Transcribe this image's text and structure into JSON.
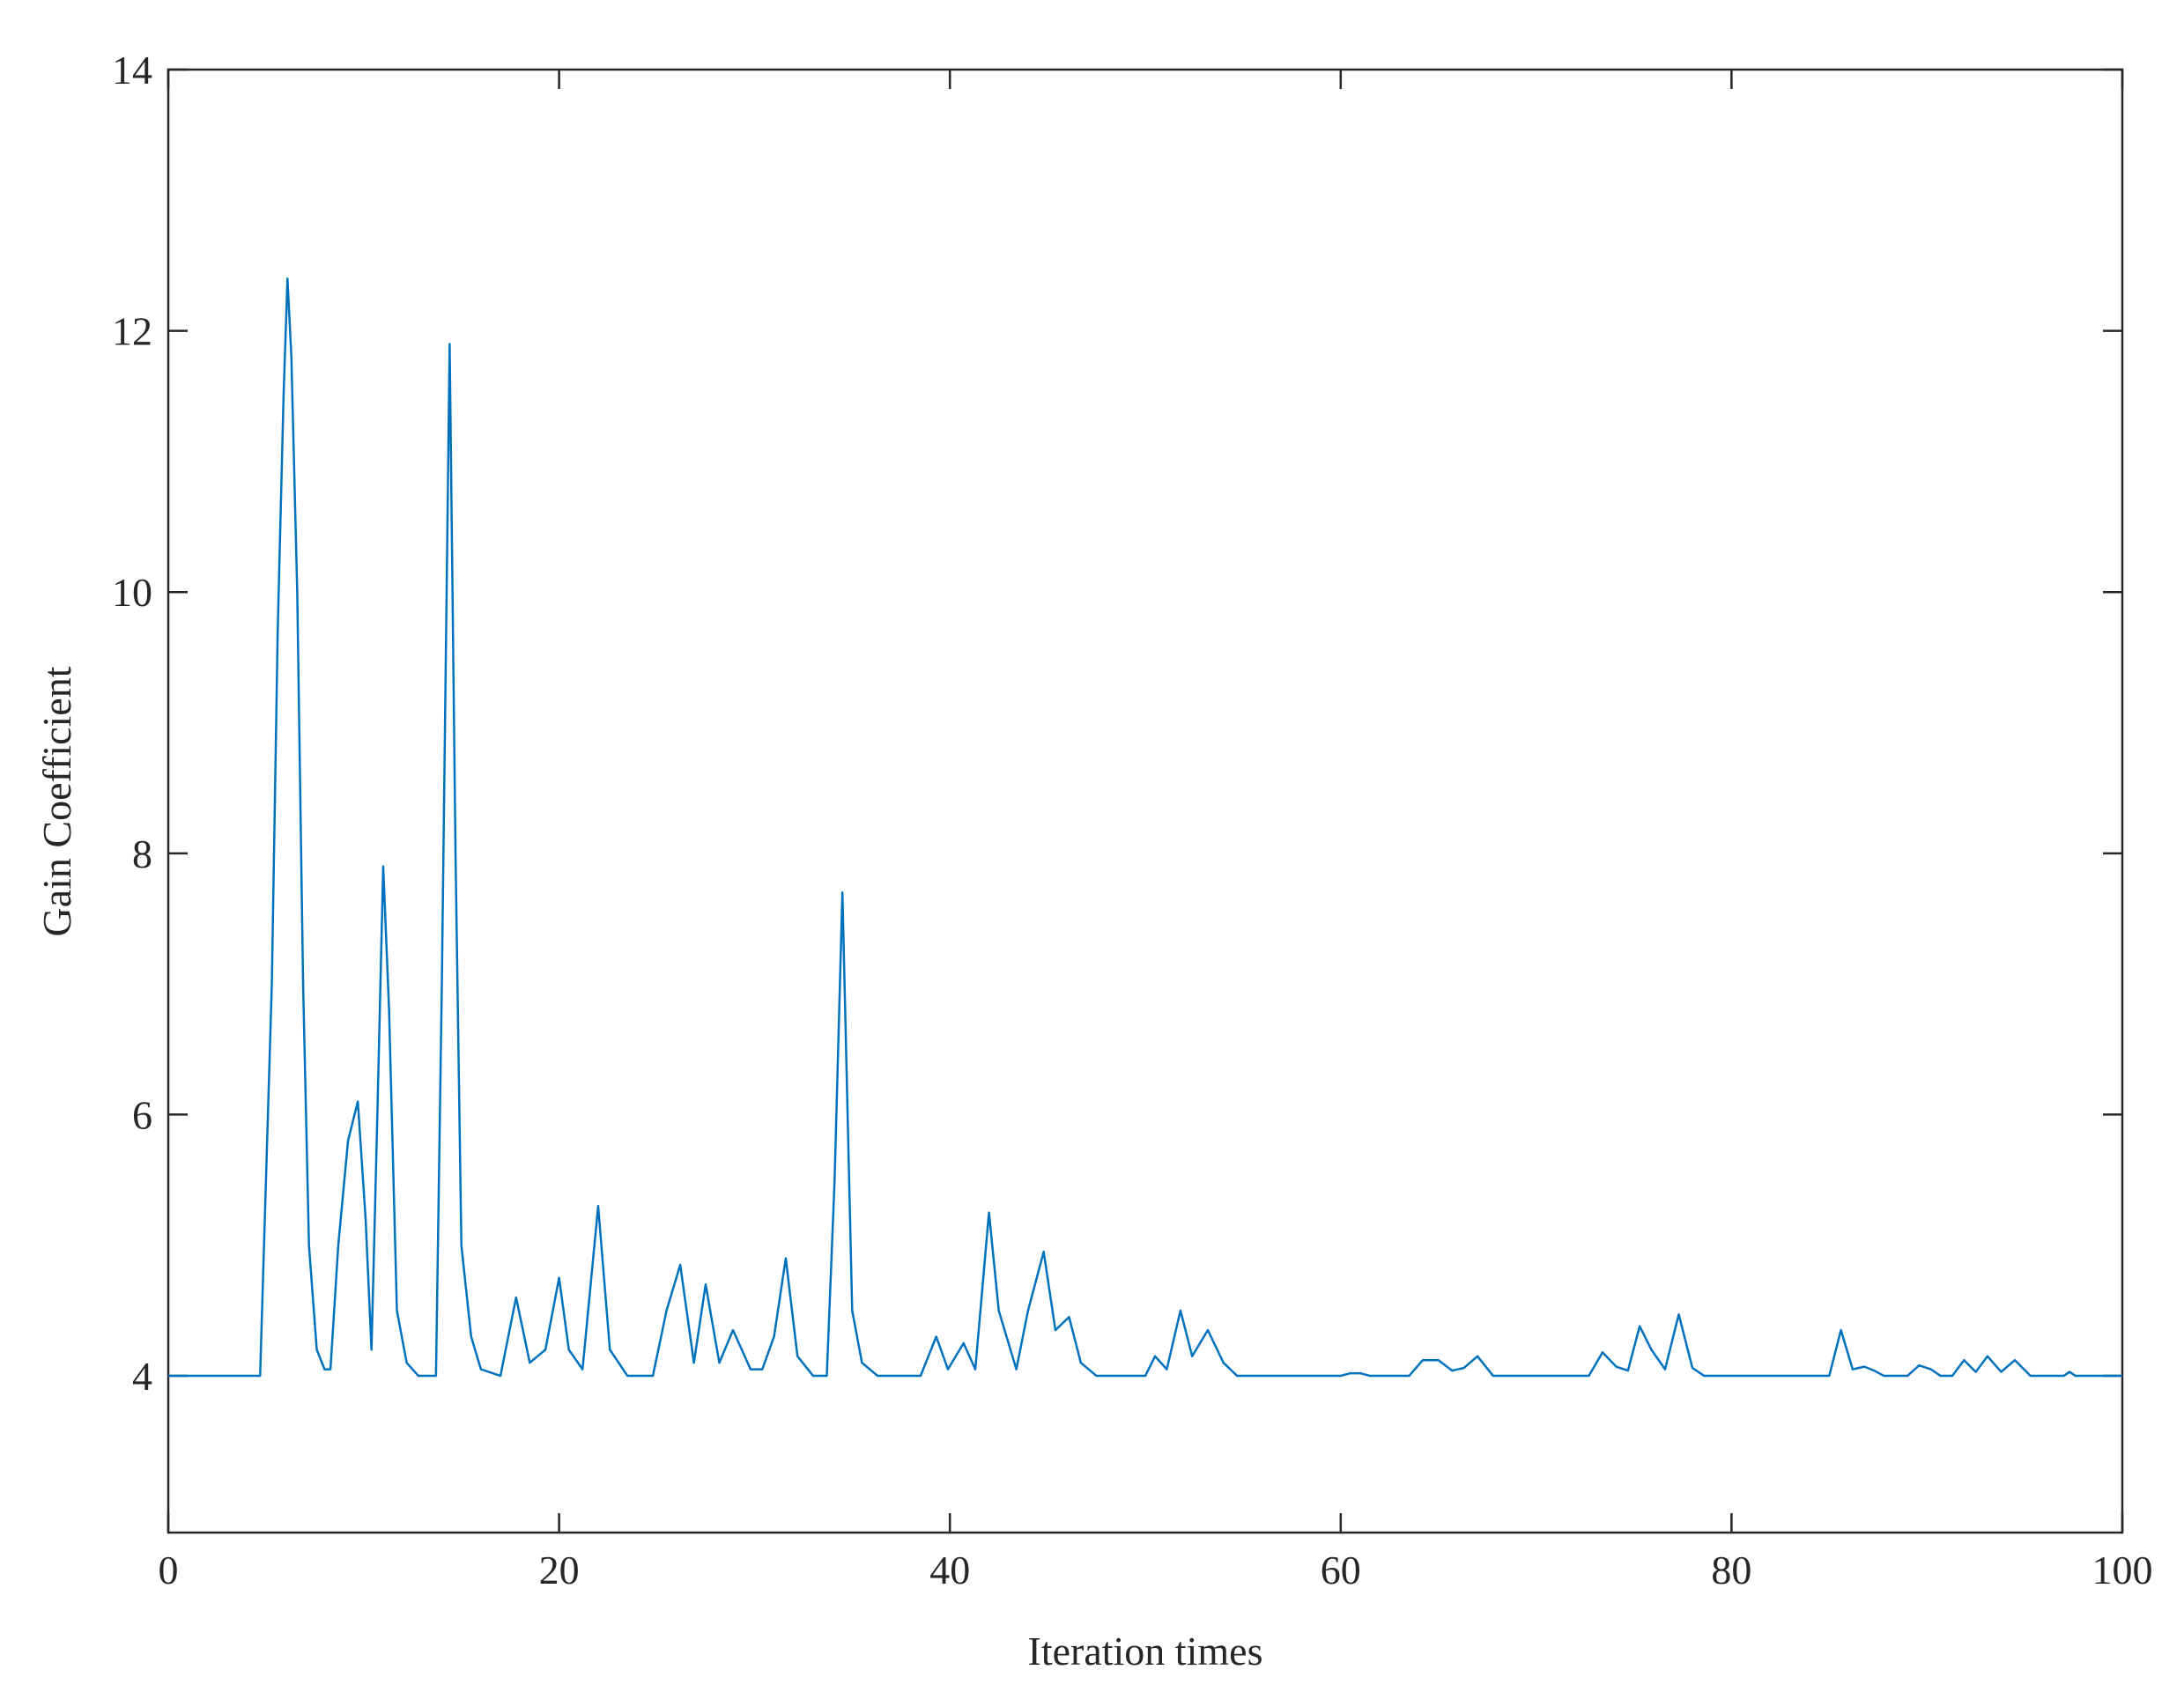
{
  "chart_data": {
    "type": "line",
    "x_label": "Iteration times",
    "y_label": "Gain Coefficient",
    "xlim": [
      0,
      100
    ],
    "xticks": [
      0,
      20,
      40,
      60,
      80,
      100
    ],
    "ylim": [
      2.8,
      14
    ],
    "yticks": [
      4,
      6,
      8,
      10,
      12,
      14
    ],
    "color": "#0072bd",
    "x": [
      0,
      4.7,
      5,
      5.3,
      5.6,
      5.9,
      6.1,
      6.3,
      6.6,
      6.9,
      7.2,
      7.6,
      8,
      8.3,
      8.7,
      9.2,
      9.7,
      10.1,
      10.4,
      10.7,
      11,
      11.3,
      11.7,
      12.2,
      12.8,
      13.7,
      14,
      14.4,
      14.7,
      15,
      15.5,
      16,
      17,
      17.8,
      18.5,
      19.3,
      20,
      20.5,
      21.2,
      22,
      22.6,
      23.5,
      24.8,
      25.5,
      26.2,
      26.9,
      27.5,
      28.2,
      28.9,
      29.8,
      30.4,
      31,
      31.6,
      32.2,
      33,
      33.7,
      34.1,
      34.5,
      35,
      35.5,
      36.3,
      38.5,
      39.3,
      39.9,
      40.7,
      41.3,
      42,
      42.5,
      43.4,
      44,
      44.8,
      45.4,
      46.1,
      46.7,
      47.5,
      50,
      50.5,
      51.1,
      51.8,
      52.4,
      53.2,
      54,
      54.7,
      60,
      60.5,
      61,
      61.5,
      63.5,
      64.2,
      65,
      65.7,
      66.3,
      67,
      67.8,
      72.7,
      73.4,
      74.1,
      74.7,
      75.3,
      75.9,
      76.6,
      77.3,
      78,
      78.6,
      85,
      85.6,
      86.2,
      86.8,
      87.3,
      87.8,
      89,
      89.6,
      90.2,
      90.7,
      91.3,
      91.9,
      92.5,
      93.1,
      93.8,
      94.5,
      95.3,
      97,
      97.3,
      97.6,
      100
    ],
    "values": [
      4,
      4,
      5.5,
      7,
      9.7,
      11.5,
      12.4,
      11.8,
      10,
      7,
      5,
      4.2,
      4.05,
      4.05,
      5,
      5.8,
      6.1,
      5.2,
      4.2,
      6,
      7.9,
      6.8,
      4.5,
      4.1,
      4,
      4,
      7,
      11.9,
      8,
      5,
      4.3,
      4.05,
      4,
      4.6,
      4.1,
      4.2,
      4.75,
      4.2,
      4.05,
      5.3,
      4.2,
      4,
      4,
      4.5,
      4.85,
      4.1,
      4.7,
      4.1,
      4.35,
      4.05,
      4.05,
      4.3,
      4.9,
      4.15,
      4,
      4,
      5.5,
      7.7,
      4.5,
      4.1,
      4,
      4,
      4.3,
      4.05,
      4.25,
      4.05,
      5.25,
      4.5,
      4.05,
      4.5,
      4.95,
      4.35,
      4.45,
      4.1,
      4,
      4,
      4.15,
      4.05,
      4.5,
      4.15,
      4.35,
      4.1,
      4,
      4,
      4.02,
      4.02,
      4,
      4,
      4.12,
      4.12,
      4.04,
      4.06,
      4.15,
      4,
      4,
      4.18,
      4.07,
      4.04,
      4.38,
      4.2,
      4.05,
      4.47,
      4.06,
      4,
      4,
      4.35,
      4.05,
      4.07,
      4.04,
      4,
      4,
      4.08,
      4.05,
      4,
      4,
      4.12,
      4.03,
      4.15,
      4.03,
      4.12,
      4,
      4,
      4.03,
      4,
      4
    ]
  }
}
